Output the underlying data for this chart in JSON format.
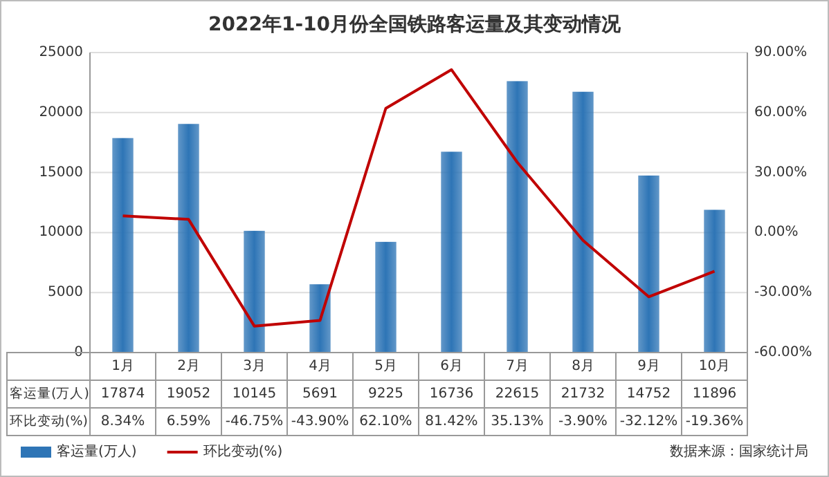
{
  "chart_data": {
    "type": "bar",
    "title": "2022年1-10月份全国铁路客运量及其变动情况",
    "categories": [
      "1月",
      "2月",
      "3月",
      "4月",
      "5月",
      "6月",
      "7月",
      "8月",
      "9月",
      "10月"
    ],
    "series": [
      {
        "name": "客运量(万人)",
        "color": "#2e75b6",
        "values": [
          17874,
          19052,
          10145,
          5691,
          9225,
          16736,
          22615,
          21732,
          14752,
          11896
        ],
        "value_labels": [
          "17874",
          "19052",
          "10145",
          "5691",
          "9225",
          "16736",
          "22615",
          "21732",
          "14752",
          "11896"
        ]
      },
      {
        "name": "环比变动(%)",
        "type": "line",
        "axis": "y2",
        "color": "#c00000",
        "values": [
          8.34,
          6.59,
          -46.75,
          -43.9,
          62.1,
          81.42,
          35.13,
          -3.9,
          -32.12,
          -19.36
        ],
        "value_labels": [
          "8.34%",
          "6.59%",
          "-46.75%",
          "-43.90%",
          "62.10%",
          "81.42%",
          "35.13%",
          "-3.90%",
          "-32.12%",
          "-19.36%"
        ]
      }
    ],
    "ylim": [
      0,
      25000
    ],
    "yticks": [
      0,
      5000,
      10000,
      15000,
      20000,
      25000
    ],
    "y2lim": [
      -60,
      90
    ],
    "y2ticks": [
      {
        "value": -60,
        "label": "-60.00%"
      },
      {
        "value": -30,
        "label": "-30.00%"
      },
      {
        "value": 0,
        "label": "0.00%"
      },
      {
        "value": 30,
        "label": "30.00%"
      },
      {
        "value": 60,
        "label": "60.00%"
      },
      {
        "value": 90,
        "label": "90.00%"
      }
    ],
    "grid": "y",
    "legend": "bottom left",
    "line_style": "solid",
    "annotations": [
      "数据来源：国家统计局"
    ]
  }
}
